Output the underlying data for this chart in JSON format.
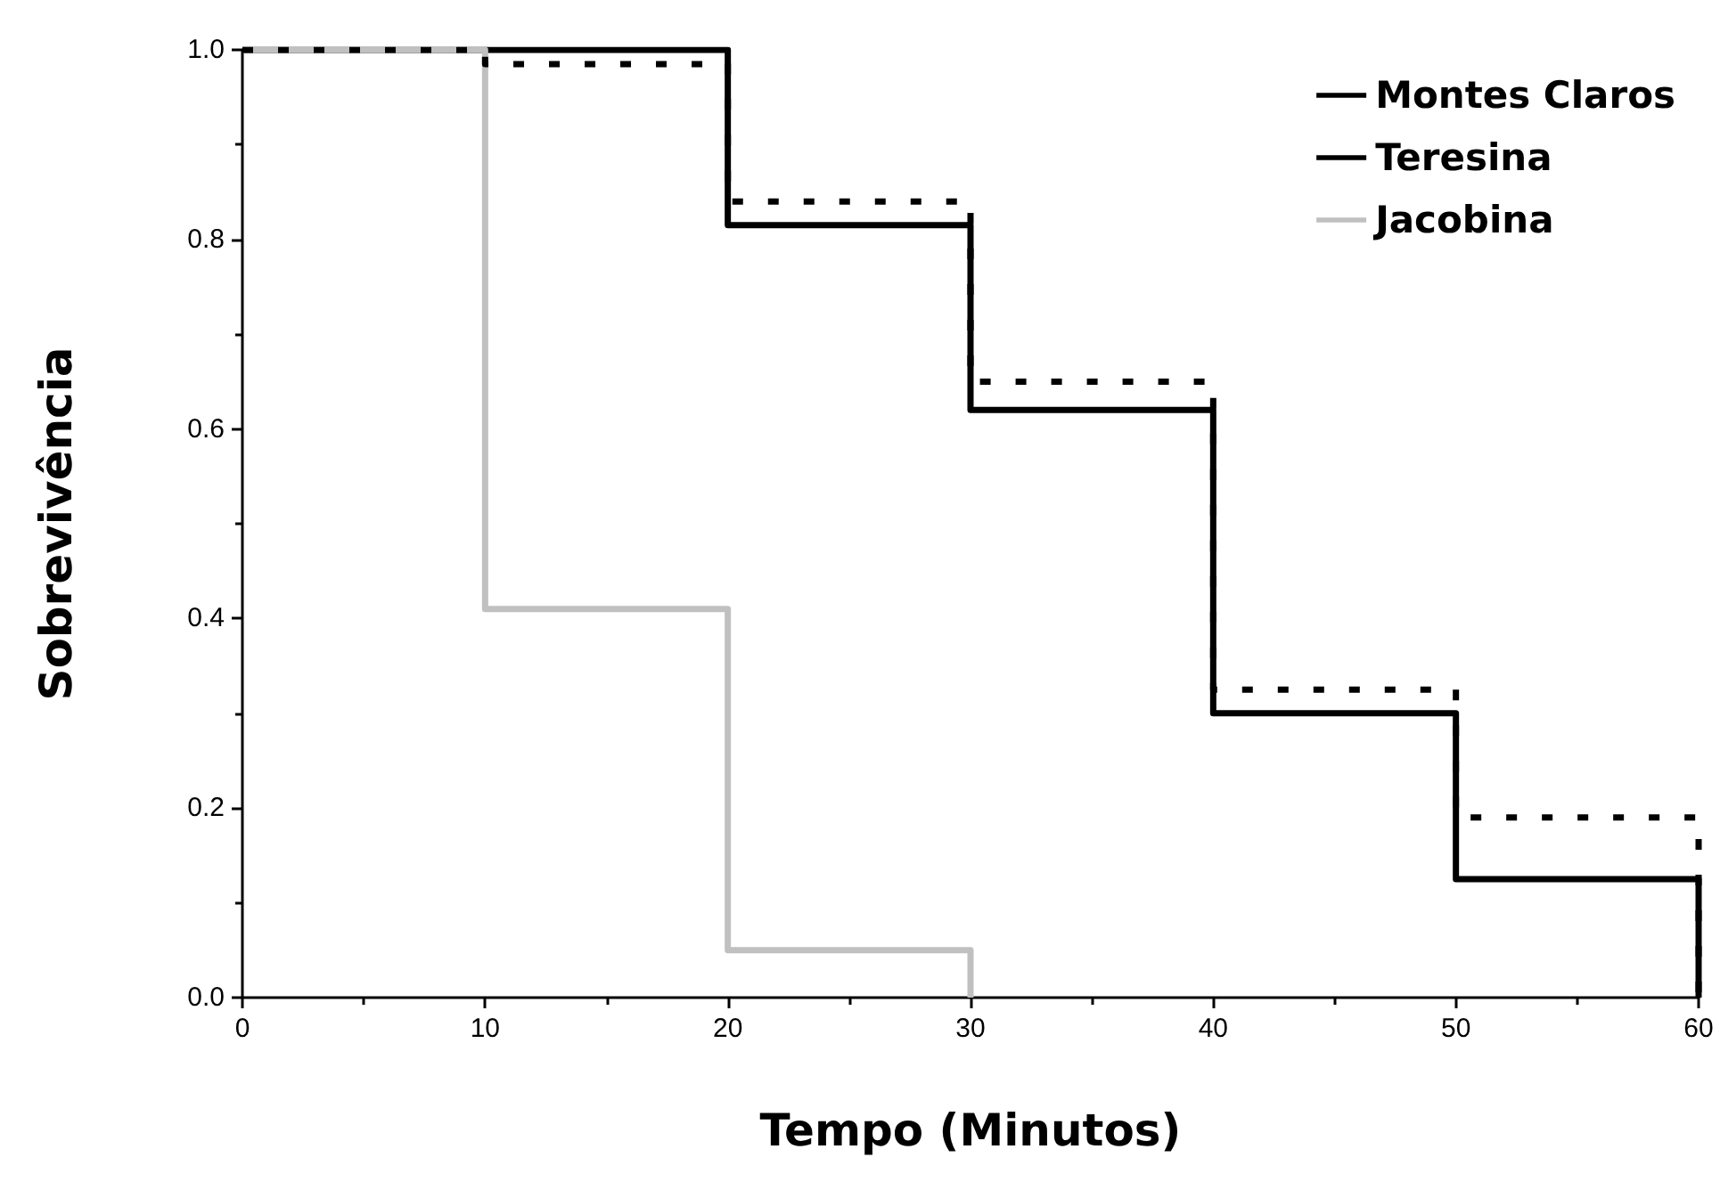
{
  "chart_data": {
    "type": "step",
    "xlabel": "Tempo (Minutos)",
    "ylabel": "Sobrevivência",
    "xlim": [
      0,
      60
    ],
    "xticks": [
      0,
      10,
      20,
      30,
      40,
      50,
      60
    ],
    "ylim": [
      0,
      1
    ],
    "yticks": [
      {
        "value": 0,
        "label": "0.0"
      },
      {
        "value": 0.2,
        "label": "0.2"
      },
      {
        "value": 0.4,
        "label": "0.4"
      },
      {
        "value": 0.6,
        "label": "0.6"
      },
      {
        "value": 0.8,
        "label": "0.8"
      },
      {
        "value": 1,
        "label": "1.0"
      }
    ],
    "grid": false,
    "legend": "top right",
    "marker": "none",
    "series": [
      {
        "name": "Montes Claros",
        "color": "#000000",
        "line_style": "dashed",
        "x": [
          0,
          10,
          20,
          30,
          40,
          50,
          60
        ],
        "values": [
          1,
          0.985,
          0.84,
          0.65,
          0.325,
          0.19,
          0
        ]
      },
      {
        "name": "Teresina",
        "color": "#000000",
        "line_style": "solid",
        "x": [
          0,
          20,
          30,
          40,
          50,
          60
        ],
        "values": [
          1,
          0.815,
          0.62,
          0.3,
          0.125,
          0
        ]
      },
      {
        "name": "Jacobina",
        "color": "#c0c0c0",
        "line_style": "solid",
        "x": [
          0,
          10,
          20,
          30
        ],
        "values": [
          1,
          0.41,
          0.05,
          0
        ]
      }
    ]
  }
}
